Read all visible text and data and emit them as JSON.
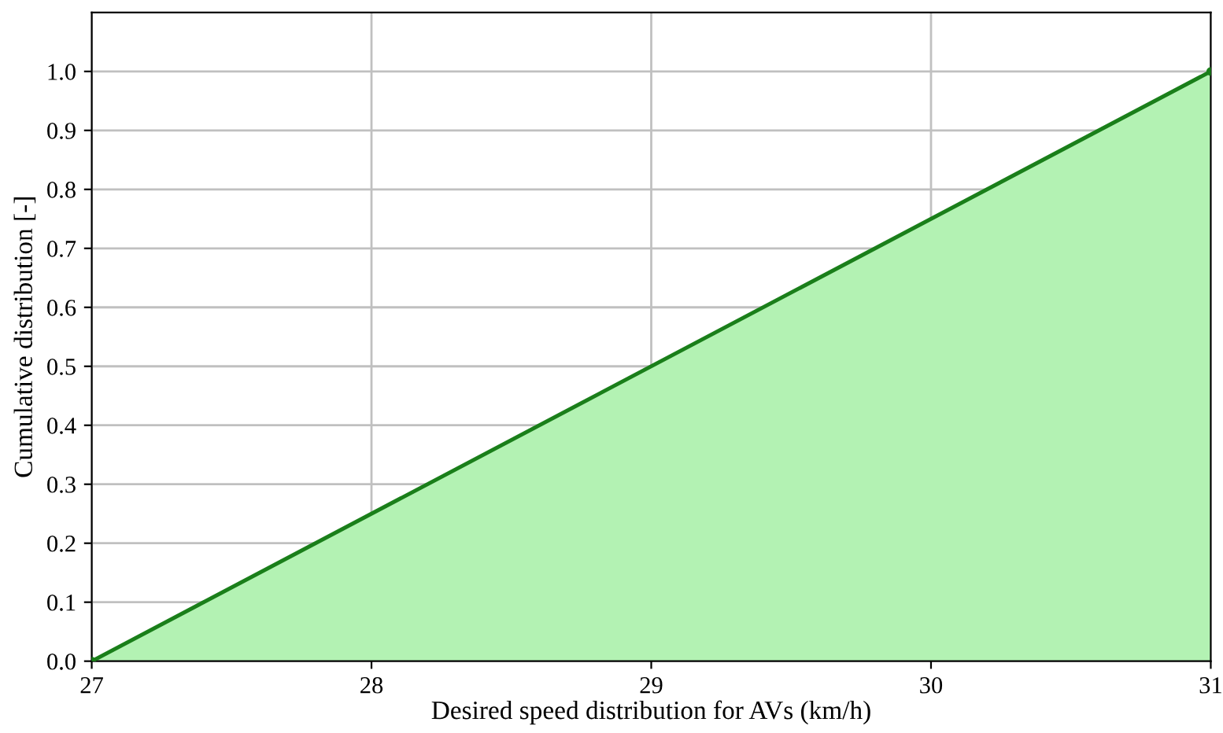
{
  "chart_data": {
    "type": "area",
    "xlabel": "Desired speed distribution for AVs (km/h)",
    "ylabel": "Cumulative distribution [-]",
    "x": [
      27,
      31
    ],
    "series": [
      {
        "color": "#1a7f1a",
        "values": [
          0,
          1
        ]
      }
    ],
    "xlim": [
      27,
      31
    ],
    "ylim": [
      0,
      1.1
    ],
    "xticks": [
      27,
      28,
      29,
      30,
      31
    ],
    "yticks": [
      {
        "value": 0,
        "label": "0.0"
      },
      0.1,
      0.2,
      0.3,
      0.4,
      0.5,
      0.6,
      0.7,
      0.8,
      0.9,
      {
        "value": 1,
        "label": "1.0"
      }
    ],
    "grid": true,
    "marker": "circle",
    "line_style": "solid"
  }
}
